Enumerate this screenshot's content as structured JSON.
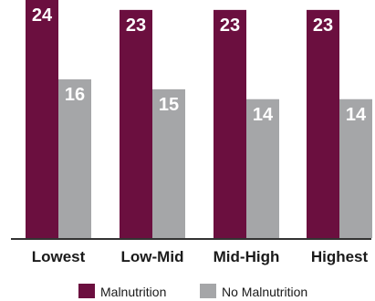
{
  "chart_data": {
    "type": "bar",
    "categories": [
      "Lowest",
      "Low-Mid",
      "Mid-High",
      "Highest"
    ],
    "series": [
      {
        "name": "Malnutrition",
        "values": [
          24,
          23,
          23,
          23
        ],
        "color": "#6b0f3f"
      },
      {
        "name": "No Malnutrition",
        "values": [
          16,
          15,
          14,
          14
        ],
        "color": "#a5a6a8"
      }
    ],
    "title": "",
    "xlabel": "",
    "ylabel": "",
    "ylim": [
      0,
      24
    ],
    "grid": false,
    "legend_position": "bottom"
  }
}
